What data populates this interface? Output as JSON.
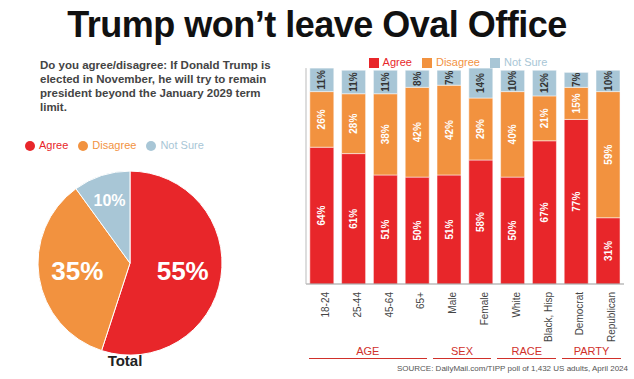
{
  "chart_data": [
    {
      "type": "pie",
      "title": "Trump won’t leave Oval Office",
      "subtitle": "Do you agree/disagree: If Donald Trump is elected in November, he will try to remain president beyond the January 2029 term limit.",
      "categories": [
        "Agree",
        "Disagree",
        "Not Sure"
      ],
      "values": [
        55,
        35,
        10
      ],
      "value_labels": [
        "55%",
        "35%",
        "10%"
      ],
      "colors": [
        "#e8262a",
        "#f2923f",
        "#a8c6d6"
      ],
      "data_labels": true,
      "legend": "top",
      "annotations": [
        "Total"
      ]
    },
    {
      "type": "bar",
      "stacked": true,
      "categories": [
        "18-24",
        "25-44",
        "45-64",
        "65+",
        "Male",
        "Female",
        "White",
        "Black, Hisp",
        "Democrat",
        "Republican"
      ],
      "category_groups": [
        {
          "label": "AGE",
          "size": 4
        },
        {
          "label": "SEX",
          "size": 2
        },
        {
          "label": "RACE",
          "size": 2
        },
        {
          "label": "PARTY",
          "size": 2
        }
      ],
      "series": [
        {
          "name": "Agree",
          "color": "#e8262a",
          "values": [
            64,
            61,
            51,
            50,
            51,
            58,
            50,
            67,
            77,
            31
          ],
          "value_labels": [
            "64%",
            "61%",
            "51%",
            "50%",
            "51%",
            "58%",
            "50%",
            "67%",
            "77%",
            "31%"
          ]
        },
        {
          "name": "Disagree",
          "color": "#f2923f",
          "values": [
            26,
            28,
            38,
            42,
            42,
            29,
            40,
            21,
            15,
            59
          ],
          "value_labels": [
            "26%",
            "28%",
            "38%",
            "42%",
            "42%",
            "29%",
            "40%",
            "21%",
            "15%",
            "59%"
          ]
        },
        {
          "name": "Not Sure",
          "color": "#a8c6d6",
          "values": [
            11,
            11,
            11,
            8,
            7,
            14,
            10,
            12,
            7,
            10
          ],
          "value_labels": [
            "11%",
            "11%",
            "11%",
            "8%",
            "7%",
            "14%",
            "10%",
            "12%",
            "7%",
            "10%"
          ]
        }
      ],
      "ylim": [
        0,
        101
      ],
      "tick_labels": "x",
      "data_labels": true,
      "legend": "top",
      "annotations": [
        "SOURCE: DailyMail.com/TIPP poll of 1,432 US adults, April 2024"
      ]
    }
  ]
}
